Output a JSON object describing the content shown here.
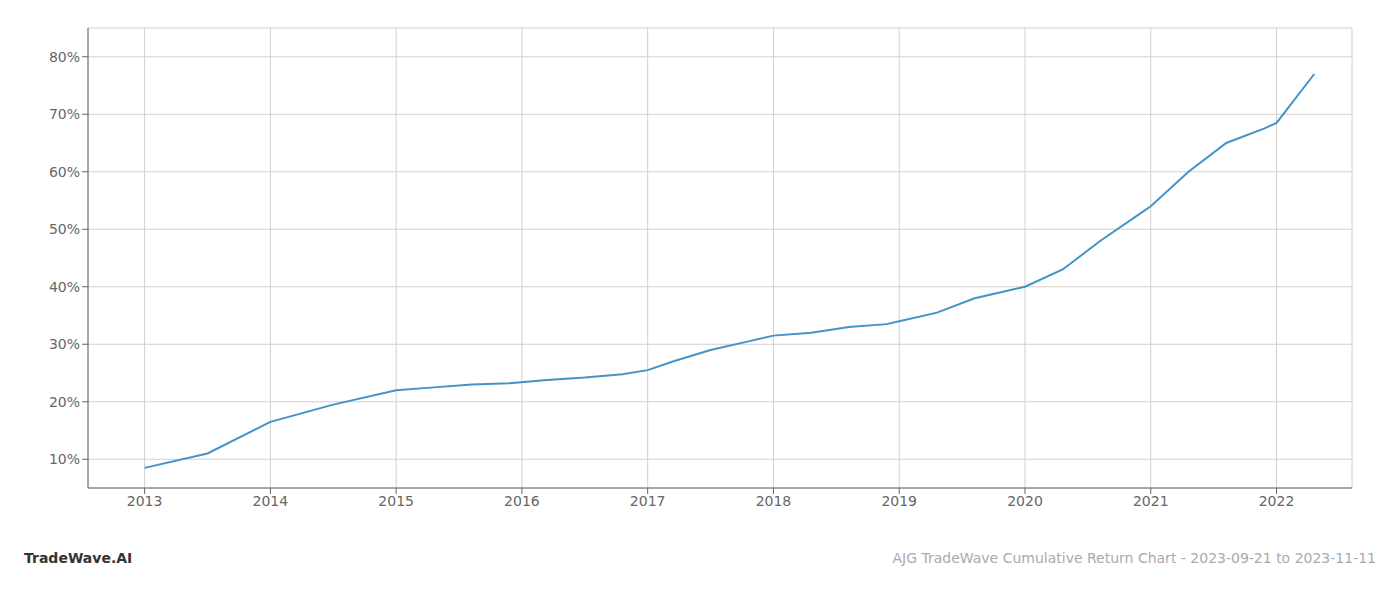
{
  "chart_data": {
    "type": "line",
    "x": [
      2013.0,
      2013.5,
      2014.0,
      2014.5,
      2015.0,
      2015.3,
      2015.6,
      2015.9,
      2016.2,
      2016.5,
      2016.8,
      2017.0,
      2017.2,
      2017.5,
      2017.8,
      2018.0,
      2018.3,
      2018.6,
      2018.9,
      2019.0,
      2019.3,
      2019.6,
      2019.8,
      2020.0,
      2020.3,
      2020.6,
      2020.9,
      2021.0,
      2021.3,
      2021.6,
      2021.9,
      2022.0,
      2022.3
    ],
    "values": [
      8.5,
      11.0,
      16.5,
      19.5,
      22.0,
      22.5,
      23.0,
      23.2,
      23.8,
      24.2,
      24.8,
      25.5,
      27.0,
      29.0,
      30.5,
      31.5,
      32.0,
      33.0,
      33.5,
      34.0,
      35.5,
      38.0,
      39.0,
      40.0,
      43.0,
      48.0,
      52.5,
      54.0,
      60.0,
      65.0,
      67.5,
      68.5,
      77.0
    ],
    "color": "#4393c9",
    "xlim": [
      2012.55,
      2022.6
    ],
    "xticks": [
      2013,
      2014,
      2015,
      2016,
      2017,
      2018,
      2019,
      2020,
      2021,
      2022
    ],
    "ylim": [
      5,
      85
    ],
    "yticks": [
      {
        "value": 10,
        "label": "10%"
      },
      {
        "value": 20,
        "label": "20%"
      },
      {
        "value": 30,
        "label": "30%"
      },
      {
        "value": 40,
        "label": "40%"
      },
      {
        "value": 50,
        "label": "50%"
      },
      {
        "value": 60,
        "label": "60%"
      },
      {
        "value": 70,
        "label": "70%"
      },
      {
        "value": 80,
        "label": "80%"
      }
    ],
    "grid": true,
    "annotations": [
      {
        "text": "TradeWave.AI",
        "color": "#333333"
      },
      {
        "text": "AJG TradeWave Cumulative Return Chart - 2023-09-21 to 2023-11-11",
        "color": "#aaaaaa"
      }
    ]
  }
}
